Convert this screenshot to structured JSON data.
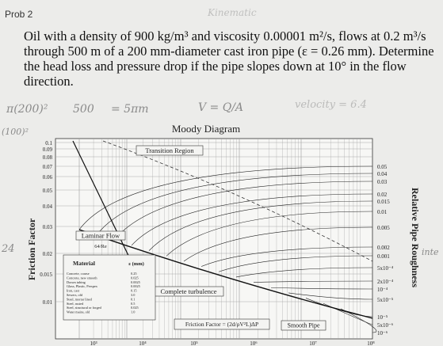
{
  "header": {
    "title": "Prob 2"
  },
  "problem": {
    "text": "Oil with a density of 900 kg/m³ and viscosity 0.00001 m²/s, flows at 0.2 m³/s through 500 m of a 200 mm-diameter cast iron pipe (ε = 0.26 mm). Determine the head loss and pressure drop if the pipe slopes down at 10° in the flow direction."
  },
  "handwriting": [
    "Kinematic",
    "π(200)²",
    "500",
    "= 5πm",
    "V = Q/A",
    "velocity = 6.4",
    "(100)²",
    "24",
    "inte"
  ],
  "moody": {
    "title": "Moody Diagram",
    "y_label": "Friction Factor",
    "y2_label": "Relative Pipe Roughness",
    "friction_ticks": [
      "0.1",
      "0.09",
      "0.08",
      "0.07",
      "0.06",
      "0.05",
      "0.04",
      "0.03",
      "0.02",
      "0.015",
      "0.01"
    ],
    "roughness_ticks": [
      "0.05",
      "0.04",
      "0.03",
      "0.02",
      "0.015",
      "0.01",
      "0.005",
      "0.002",
      "0.001",
      "5x10⁻⁴",
      "2x10⁻⁴",
      "10⁻⁴",
      "5x10⁻⁵",
      "10⁻⁵",
      "5x10⁻⁶",
      "10⁻⁶"
    ],
    "reynolds_ticks": [
      "10³",
      "10⁴",
      "10⁵",
      "10⁶",
      "10⁷",
      "10⁸"
    ],
    "regions": {
      "transition": "Transition Region",
      "laminar": "Laminar Flow",
      "laminar_formula": "64/Re",
      "complete": "Complete turbulence",
      "friction_formula": "Friction Factor = (2d/ρV²L)ΔP",
      "smooth": "Smooth Pipe"
    },
    "material_table": {
      "headers": [
        "Material",
        "ε (mm)"
      ],
      "rows": [
        [
          "Concrete, coarse",
          "0.25"
        ],
        [
          "Concrete, new smooth",
          "0.025"
        ],
        [
          "Drawn tubing",
          "0.0025"
        ],
        [
          "Glass, Plastic, Perspex",
          "0.0025"
        ],
        [
          "Iron, cast",
          "0.15"
        ],
        [
          "Sewers, old",
          "3.0"
        ],
        [
          "Steel, mortar lined",
          "0.1"
        ],
        [
          "Steel, rusted",
          "0.5"
        ],
        [
          "Steel, structural or forged",
          "0.025"
        ],
        [
          "Water mains, old",
          "1.0"
        ]
      ]
    }
  }
}
